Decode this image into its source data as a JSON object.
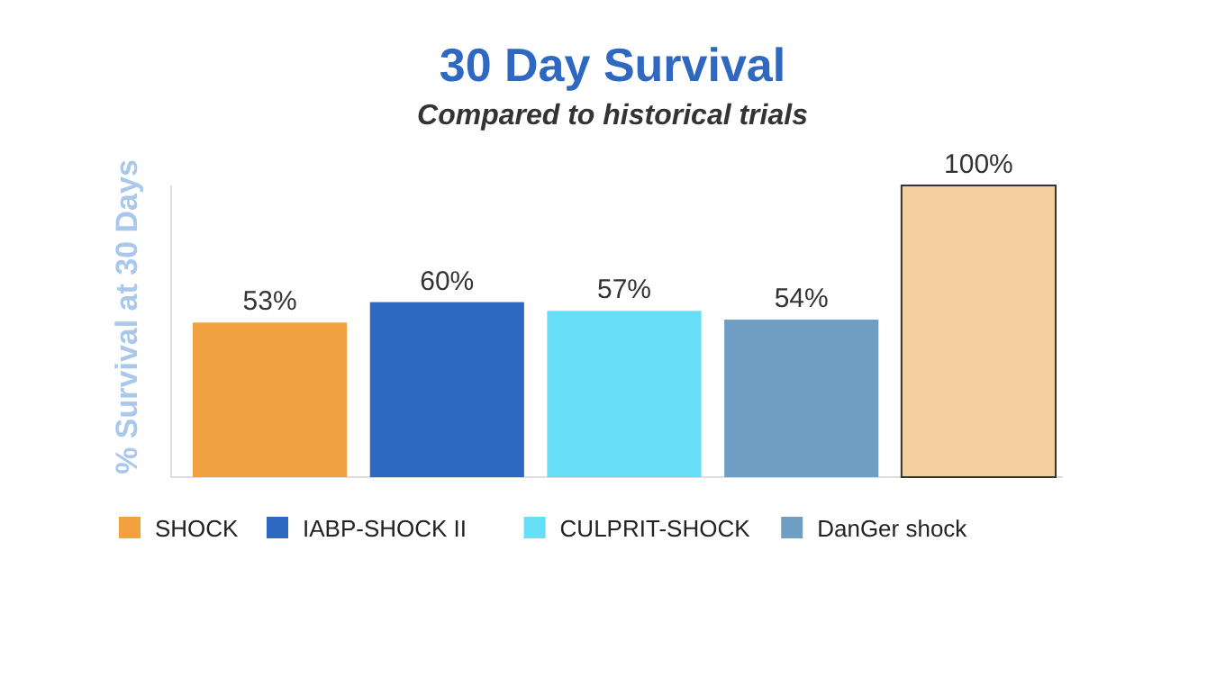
{
  "chart_data": {
    "type": "bar",
    "title": "30 Day Survival",
    "subtitle": "Compared to historical trials",
    "ylabel": "% Survival at 30 Days",
    "categories": [
      null
    ],
    "series": [
      {
        "name": "SHOCK",
        "color": "#f1a140",
        "values": [
          53
        ],
        "value_labels": [
          "53%"
        ]
      },
      {
        "name": "IABP-SHOCK II",
        "color": "#2f68c0",
        "values": [
          60
        ],
        "value_labels": [
          "60%"
        ]
      },
      {
        "name": "CULPRIT-SHOCK",
        "color": "#66def8",
        "values": [
          57
        ],
        "value_labels": [
          "57%"
        ]
      },
      {
        "name": "DanGer shock",
        "color": "#6f9ec5",
        "values": [
          54
        ],
        "value_labels": [
          "54%"
        ]
      },
      {
        "color": "#f3cf9f",
        "values": [
          100
        ],
        "value_labels": [
          "100%"
        ]
      }
    ],
    "legend": "bottom"
  }
}
